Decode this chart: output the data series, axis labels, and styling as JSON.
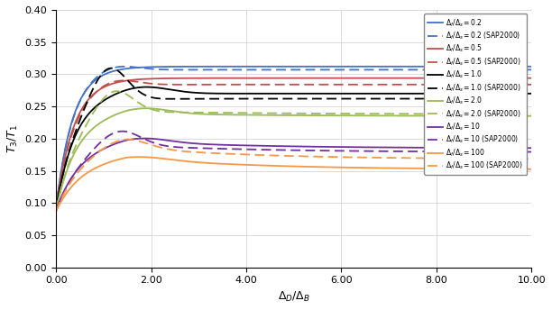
{
  "title": "",
  "xlabel": "$\\Delta_D / \\Delta_B$",
  "ylabel": "$T_3 / T_1$",
  "xlim": [
    0,
    10
  ],
  "ylim": [
    0,
    0.4
  ],
  "xticks": [
    0.0,
    2.0,
    4.0,
    6.0,
    8.0,
    10.0
  ],
  "yticks": [
    0.0,
    0.05,
    0.1,
    0.15,
    0.2,
    0.25,
    0.3,
    0.35,
    0.4
  ],
  "colors": {
    "0.2": "#4472C4",
    "0.5": "#C0504D",
    "1.0": "#000000",
    "2.0": "#9BBB59",
    "10.0": "#7030A0",
    "100.0": "#F79646"
  },
  "ana_end": {
    "0.2": 0.312,
    "0.5": 0.294,
    "1.0": 0.27,
    "2.0": 0.24,
    "10.0": 0.197,
    "100.0": 0.172
  },
  "sap_end": {
    "0.2": 0.307,
    "0.5": 0.284,
    "1.0": 0.262,
    "2.0": 0.243,
    "10.0": 0.191,
    "100.0": 0.188
  },
  "figsize": [
    6.12,
    3.44
  ],
  "dpi": 100
}
